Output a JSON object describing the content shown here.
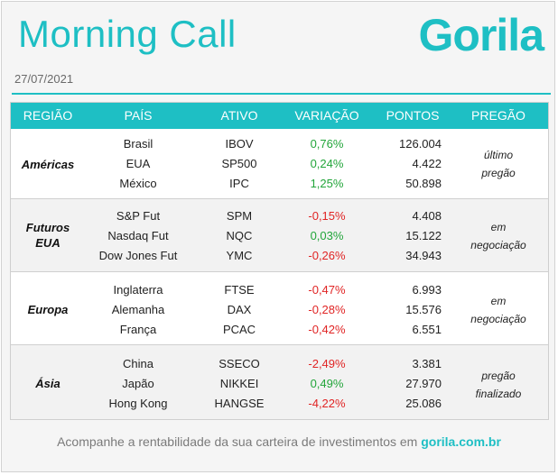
{
  "header": {
    "title": "Morning Call",
    "brand": "Gorila",
    "date": "27/07/2021"
  },
  "colors": {
    "accent": "#1ebfc4",
    "positive": "#22a53a",
    "negative": "#e02424"
  },
  "table": {
    "columns": [
      "REGIÃO",
      "PAÍS",
      "ATIVO",
      "VARIAÇÃO",
      "PONTOS",
      "PREGÃO"
    ],
    "groups": [
      {
        "region": "Américas",
        "status": [
          "último",
          "pregão"
        ],
        "rows": [
          {
            "country": "Brasil",
            "asset": "IBOV",
            "change": "0,76%",
            "points": "126.004"
          },
          {
            "country": "EUA",
            "asset": "SP500",
            "change": "0,24%",
            "points": "4.422"
          },
          {
            "country": "México",
            "asset": "IPC",
            "change": "1,25%",
            "points": "50.898"
          }
        ]
      },
      {
        "region": [
          "Futuros",
          "EUA"
        ],
        "status": [
          "em",
          "negociação"
        ],
        "rows": [
          {
            "country": "S&P Fut",
            "asset": "SPM",
            "change": "-0,15%",
            "points": "4.408"
          },
          {
            "country": "Nasdaq Fut",
            "asset": "NQC",
            "change": "0,03%",
            "points": "15.122"
          },
          {
            "country": "Dow Jones Fut",
            "asset": "YMC",
            "change": "-0,26%",
            "points": "34.943"
          }
        ]
      },
      {
        "region": "Europa",
        "status": [
          "em",
          "negociação"
        ],
        "rows": [
          {
            "country": "Inglaterra",
            "asset": "FTSE",
            "change": "-0,47%",
            "points": "6.993"
          },
          {
            "country": "Alemanha",
            "asset": "DAX",
            "change": "-0,28%",
            "points": "15.576"
          },
          {
            "country": "França",
            "asset": "PCAC",
            "change": "-0,42%",
            "points": "6.551"
          }
        ]
      },
      {
        "region": "Ásia",
        "status": [
          "pregão",
          "finalizado"
        ],
        "rows": [
          {
            "country": "China",
            "asset": "SSECO",
            "change": "-2,49%",
            "points": "3.381"
          },
          {
            "country": "Japão",
            "asset": "NIKKEI",
            "change": "0,49%",
            "points": "27.970"
          },
          {
            "country": "Hong Kong",
            "asset": "HANGSE",
            "change": "-4,22%",
            "points": "25.086"
          }
        ]
      }
    ]
  },
  "footer": {
    "text": "Acompanhe a rentabilidade da sua carteira de investimentos em ",
    "link": "gorila.com.br"
  }
}
